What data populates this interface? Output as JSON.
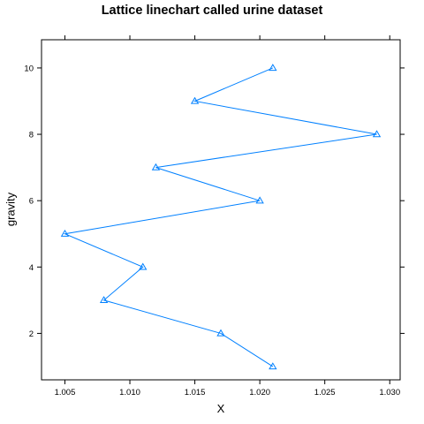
{
  "chart_data": {
    "type": "line",
    "title": "Lattice linechart called urine dataset",
    "xlabel": "X",
    "ylabel": "gravity",
    "xlim": [
      1.0032,
      1.0308
    ],
    "ylim": [
      0.6,
      10.85
    ],
    "x_ticks": [
      1.005,
      1.01,
      1.015,
      1.02,
      1.025,
      1.03
    ],
    "x_tick_labels": [
      "1.005",
      "1.010",
      "1.015",
      "1.020",
      "1.025",
      "1.030"
    ],
    "y_ticks": [
      2,
      4,
      6,
      8,
      10
    ],
    "y_tick_labels": [
      "2",
      "4",
      "6",
      "8",
      "10"
    ],
    "marker": "triangle-open",
    "grid": false,
    "series": [
      {
        "color": "#0080ff",
        "points": [
          {
            "x": 1.021,
            "y": 1
          },
          {
            "x": 1.017,
            "y": 2
          },
          {
            "x": 1.008,
            "y": 3
          },
          {
            "x": 1.011,
            "y": 4
          },
          {
            "x": 1.005,
            "y": 5
          },
          {
            "x": 1.02,
            "y": 6
          },
          {
            "x": 1.012,
            "y": 7
          },
          {
            "x": 1.029,
            "y": 8
          },
          {
            "x": 1.015,
            "y": 9
          },
          {
            "x": 1.021,
            "y": 10
          }
        ]
      }
    ]
  }
}
